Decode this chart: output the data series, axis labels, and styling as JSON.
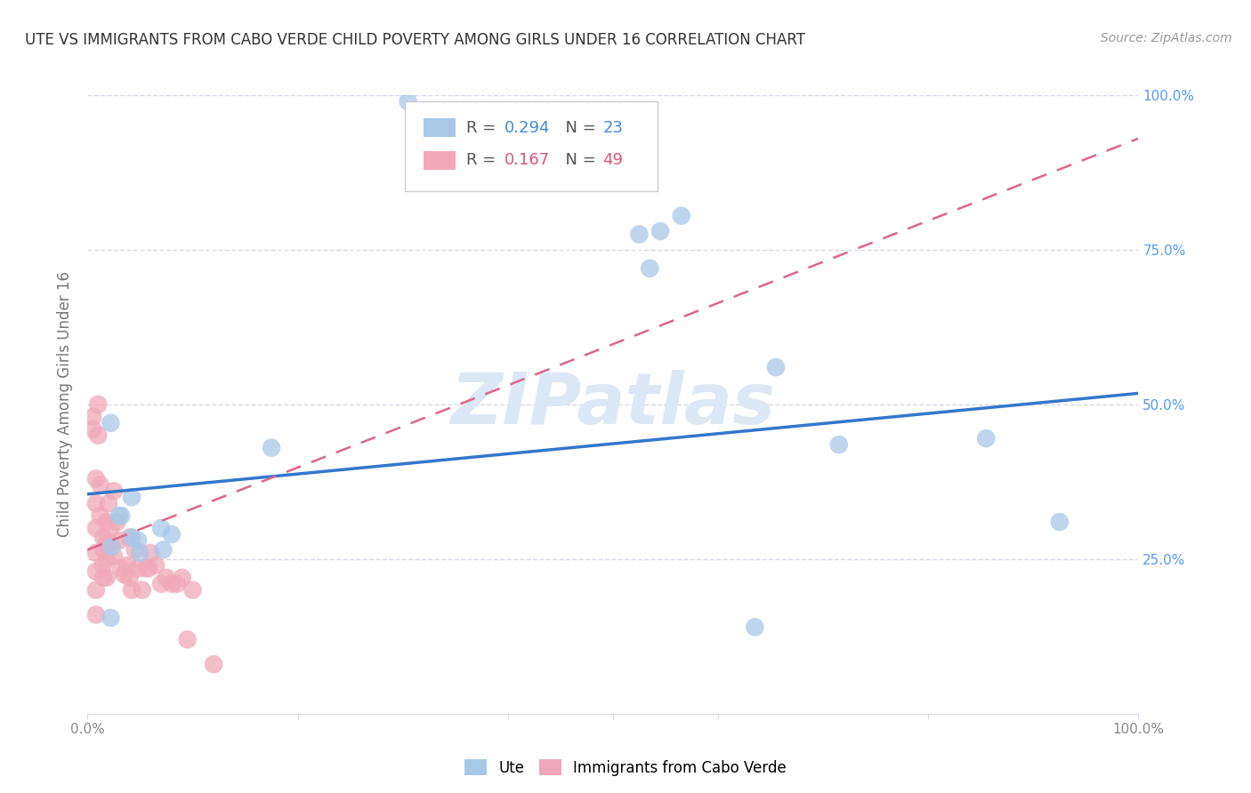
{
  "title": "UTE VS IMMIGRANTS FROM CABO VERDE CHILD POVERTY AMONG GIRLS UNDER 16 CORRELATION CHART",
  "source": "Source: ZipAtlas.com",
  "ylabel": "Child Poverty Among Girls Under 16",
  "xlim": [
    0,
    1
  ],
  "ylim": [
    0,
    1
  ],
  "ute_r": "0.294",
  "ute_n": "23",
  "cabo_r": "0.167",
  "cabo_n": "49",
  "blue_color": "#a8c8e8",
  "pink_color": "#f0a8b8",
  "line_blue": "#3377cc",
  "line_pink": "#dd6688",
  "ute_points_x": [
    0.305,
    0.022,
    0.03,
    0.048,
    0.07,
    0.042,
    0.08,
    0.05,
    0.023,
    0.032,
    0.042,
    0.072,
    0.175,
    0.535,
    0.545,
    0.655,
    0.715,
    0.925,
    0.635,
    0.525,
    0.565,
    0.855,
    0.022
  ],
  "ute_points_y": [
    0.99,
    0.47,
    0.32,
    0.28,
    0.3,
    0.35,
    0.29,
    0.26,
    0.27,
    0.32,
    0.285,
    0.265,
    0.43,
    0.72,
    0.78,
    0.56,
    0.435,
    0.31,
    0.14,
    0.775,
    0.805,
    0.445,
    0.155
  ],
  "cabo_points_x": [
    0.005,
    0.005,
    0.008,
    0.008,
    0.008,
    0.008,
    0.008,
    0.008,
    0.008,
    0.01,
    0.01,
    0.012,
    0.012,
    0.015,
    0.015,
    0.015,
    0.015,
    0.018,
    0.018,
    0.018,
    0.018,
    0.02,
    0.022,
    0.022,
    0.025,
    0.025,
    0.028,
    0.03,
    0.032,
    0.035,
    0.038,
    0.04,
    0.04,
    0.042,
    0.045,
    0.048,
    0.052,
    0.055,
    0.058,
    0.06,
    0.065,
    0.07,
    0.075,
    0.08,
    0.085,
    0.09,
    0.095,
    0.1,
    0.12
  ],
  "cabo_points_y": [
    0.46,
    0.48,
    0.38,
    0.34,
    0.3,
    0.26,
    0.23,
    0.2,
    0.16,
    0.45,
    0.5,
    0.37,
    0.32,
    0.285,
    0.265,
    0.24,
    0.22,
    0.31,
    0.275,
    0.25,
    0.22,
    0.34,
    0.275,
    0.3,
    0.36,
    0.255,
    0.31,
    0.28,
    0.235,
    0.225,
    0.24,
    0.285,
    0.22,
    0.2,
    0.265,
    0.235,
    0.2,
    0.235,
    0.235,
    0.26,
    0.24,
    0.21,
    0.22,
    0.21,
    0.21,
    0.22,
    0.12,
    0.2,
    0.08
  ],
  "background_color": "#ffffff",
  "grid_color": "#d8d8e8",
  "watermark": "ZIPatlas",
  "watermark_color": "#dce8f5",
  "blue_line_x0": 0.0,
  "blue_line_y0": 0.355,
  "blue_line_x1": 1.0,
  "blue_line_y1": 0.518,
  "pink_line_x0": 0.0,
  "pink_line_y0": 0.265,
  "pink_line_x1": 1.0,
  "pink_line_y1": 0.93
}
